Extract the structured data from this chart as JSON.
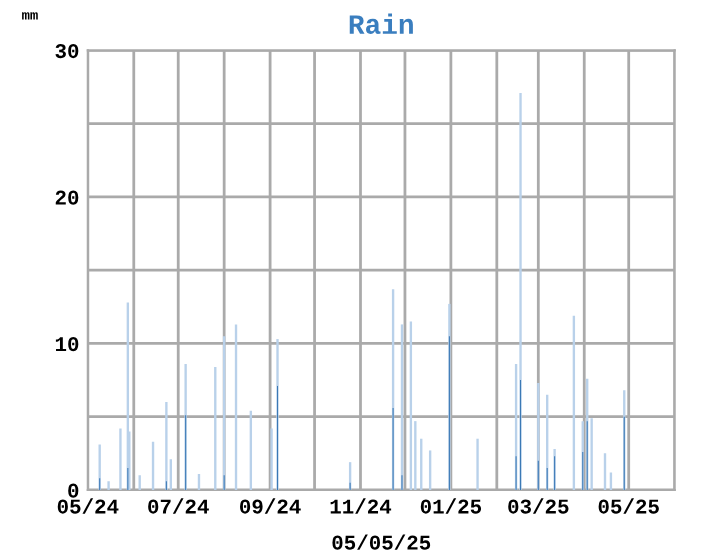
{
  "chart_data": {
    "type": "bar",
    "title": "Rain",
    "ylabel": "mm",
    "xlabel": "05/05/25",
    "series": [
      {
        "color": "#b9d1ea",
        "x": [
          "2024-05-09",
          "2024-05-15",
          "2024-05-23",
          "2024-05-28",
          "2024-05-29",
          "2024-06-05",
          "2024-06-14",
          "2024-06-23",
          "2024-06-26",
          "2024-07-06",
          "2024-07-15",
          "2024-07-26",
          "2024-08-01",
          "2024-08-09",
          "2024-08-19",
          "2024-09-02",
          "2024-09-06",
          "2024-10-25",
          "2024-11-23",
          "2024-11-29",
          "2024-12-05",
          "2024-12-08",
          "2024-12-12",
          "2024-12-18",
          "2024-12-31",
          "2025-01-19",
          "2025-02-14",
          "2025-02-17",
          "2025-03-01",
          "2025-03-07",
          "2025-03-12",
          "2025-03-25",
          "2025-03-31",
          "2025-04-03",
          "2025-04-06",
          "2025-04-15",
          "2025-04-19",
          "2025-04-28"
        ],
        "values": [
          3.1,
          0.6,
          4.2,
          12.8,
          4.0,
          1.0,
          3.3,
          6.0,
          2.1,
          8.6,
          1.1,
          8.4,
          10.5,
          11.3,
          5.4,
          4.2,
          10.3,
          1.9,
          13.7,
          11.3,
          11.5,
          4.7,
          3.5,
          2.7,
          12.7,
          3.5,
          8.6,
          27.1,
          7.3,
          6.5,
          2.8,
          11.9,
          4.7,
          7.6,
          4.9,
          2.5,
          1.2,
          6.8
        ]
      },
      {
        "color": "#3a78b5",
        "x": [
          "2024-05-09",
          "2024-05-28",
          "2024-06-23",
          "2024-07-06",
          "2024-08-01",
          "2024-09-06",
          "2024-10-25",
          "2024-11-23",
          "2024-11-29",
          "2024-12-31",
          "2025-02-14",
          "2025-02-17",
          "2025-03-01",
          "2025-03-07",
          "2025-03-12",
          "2025-03-31",
          "2025-04-03",
          "2025-04-28"
        ],
        "values": [
          0.8,
          1.5,
          0.6,
          5.1,
          1.0,
          7.1,
          0.5,
          5.6,
          1.0,
          10.5,
          2.3,
          7.5,
          2.0,
          1.5,
          2.3,
          2.6,
          4.7,
          5.0
        ]
      }
    ],
    "xlim": [
      "2024-05-01",
      "2025-06-01"
    ],
    "xticks": [
      {
        "value": "2024-05-01",
        "label": "05/24"
      },
      {
        "value": "2024-06-01",
        "label": null
      },
      {
        "value": "2024-07-01",
        "label": "07/24"
      },
      {
        "value": "2024-08-01",
        "label": null
      },
      {
        "value": "2024-09-01",
        "label": "09/24"
      },
      {
        "value": "2024-10-01",
        "label": null
      },
      {
        "value": "2024-11-01",
        "label": "11/24"
      },
      {
        "value": "2024-12-01",
        "label": null
      },
      {
        "value": "2025-01-01",
        "label": "01/25"
      },
      {
        "value": "2025-02-01",
        "label": null
      },
      {
        "value": "2025-03-01",
        "label": "03/25"
      },
      {
        "value": "2025-04-01",
        "label": null
      },
      {
        "value": "2025-05-01",
        "label": "05/25"
      },
      {
        "value": "2025-06-01",
        "label": null
      }
    ],
    "ylim": [
      0,
      30
    ],
    "yticks": [
      0,
      {
        "value": 5,
        "label": null
      },
      10,
      {
        "value": 15,
        "label": null
      },
      20,
      {
        "value": 25,
        "label": null
      },
      30
    ],
    "grid": true
  }
}
